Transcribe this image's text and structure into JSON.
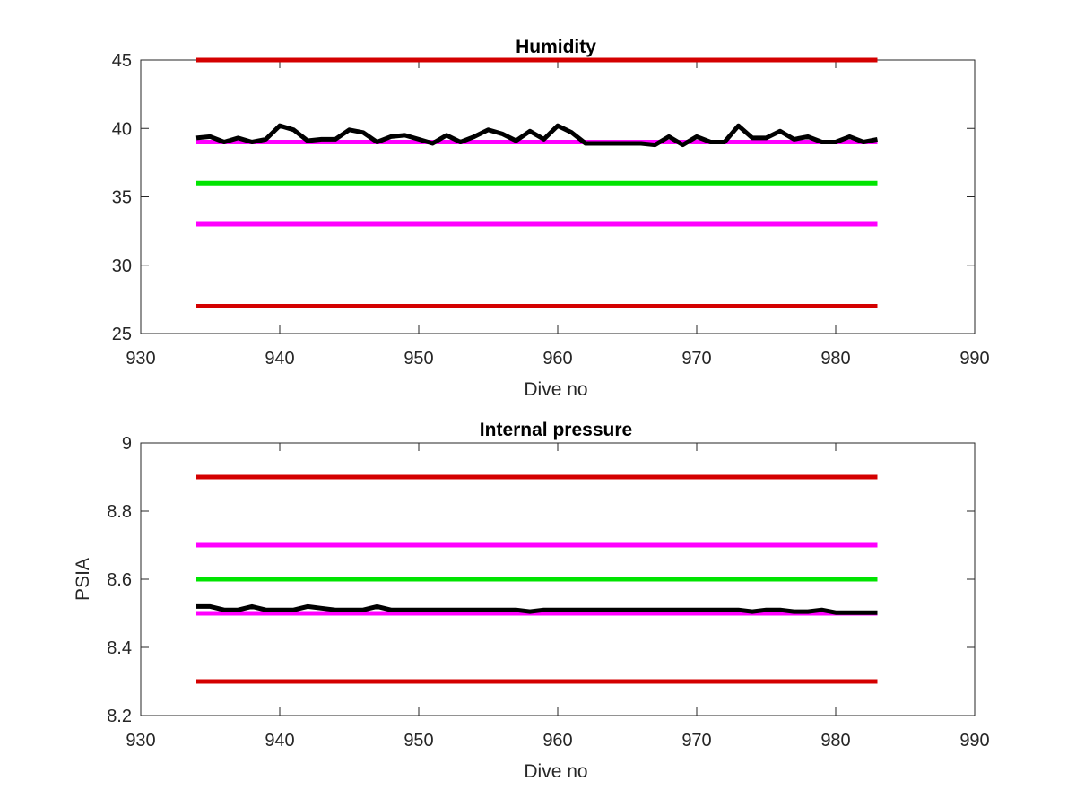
{
  "chart_data": [
    {
      "type": "line",
      "title": "Humidity",
      "xlabel": "Dive no",
      "ylabel": "",
      "xlim": [
        930,
        990
      ],
      "ylim": [
        25,
        45
      ],
      "xticks": [
        930,
        940,
        950,
        960,
        970,
        980,
        990
      ],
      "yticks": [
        25,
        30,
        35,
        40,
        45
      ],
      "grid": false,
      "thresholds": [
        {
          "y": 45,
          "color": "#d40000"
        },
        {
          "y": 39,
          "color": "#ff00ff"
        },
        {
          "y": 36,
          "color": "#00e400"
        },
        {
          "y": 33,
          "color": "#ff00ff"
        },
        {
          "y": 27,
          "color": "#d40000"
        }
      ],
      "series": [
        {
          "color": "#000000",
          "x": [
            934,
            935,
            936,
            937,
            938,
            939,
            940,
            941,
            942,
            943,
            944,
            945,
            946,
            947,
            948,
            949,
            950,
            951,
            952,
            953,
            954,
            955,
            956,
            957,
            958,
            959,
            960,
            961,
            962,
            963,
            964,
            965,
            966,
            967,
            968,
            969,
            970,
            971,
            972,
            973,
            974,
            975,
            976,
            977,
            978,
            979,
            980,
            981,
            982,
            983
          ],
          "y": [
            39.3,
            39.4,
            39.0,
            39.3,
            39.0,
            39.2,
            40.2,
            39.9,
            39.1,
            39.2,
            39.2,
            39.9,
            39.7,
            39.0,
            39.4,
            39.5,
            39.2,
            38.9,
            39.5,
            39.0,
            39.4,
            39.9,
            39.6,
            39.1,
            39.8,
            39.2,
            40.2,
            39.7,
            38.9,
            38.9,
            38.9,
            38.9,
            38.9,
            38.8,
            39.4,
            38.8,
            39.4,
            39.0,
            39.0,
            40.2,
            39.3,
            39.3,
            39.8,
            39.2,
            39.4,
            39.0,
            39.0,
            39.4,
            39.0,
            39.2
          ]
        }
      ]
    },
    {
      "type": "line",
      "title": "Internal pressure",
      "xlabel": "Dive no",
      "ylabel": "PSIA",
      "xlim": [
        930,
        990
      ],
      "ylim": [
        8.2,
        9
      ],
      "xticks": [
        930,
        940,
        950,
        960,
        970,
        980,
        990
      ],
      "yticks": [
        8.2,
        8.4,
        8.6,
        8.8,
        9
      ],
      "grid": false,
      "thresholds": [
        {
          "y": 8.9,
          "color": "#d40000"
        },
        {
          "y": 8.7,
          "color": "#ff00ff"
        },
        {
          "y": 8.6,
          "color": "#00e400"
        },
        {
          "y": 8.5,
          "color": "#ff00ff"
        },
        {
          "y": 8.3,
          "color": "#d40000"
        }
      ],
      "series": [
        {
          "color": "#000000",
          "x": [
            934,
            935,
            936,
            937,
            938,
            939,
            940,
            941,
            942,
            943,
            944,
            945,
            946,
            947,
            948,
            949,
            950,
            951,
            952,
            953,
            954,
            955,
            956,
            957,
            958,
            959,
            960,
            961,
            962,
            963,
            964,
            965,
            966,
            967,
            968,
            969,
            970,
            971,
            972,
            973,
            974,
            975,
            976,
            977,
            978,
            979,
            980,
            981,
            982,
            983
          ],
          "y": [
            8.52,
            8.52,
            8.51,
            8.51,
            8.52,
            8.51,
            8.51,
            8.51,
            8.52,
            8.515,
            8.51,
            8.51,
            8.51,
            8.52,
            8.51,
            8.51,
            8.51,
            8.51,
            8.51,
            8.51,
            8.51,
            8.51,
            8.51,
            8.51,
            8.505,
            8.51,
            8.51,
            8.51,
            8.51,
            8.51,
            8.51,
            8.51,
            8.51,
            8.51,
            8.51,
            8.51,
            8.51,
            8.51,
            8.51,
            8.51,
            8.505,
            8.51,
            8.51,
            8.505,
            8.505,
            8.51,
            8.502,
            8.502,
            8.502,
            8.502
          ]
        }
      ]
    }
  ]
}
